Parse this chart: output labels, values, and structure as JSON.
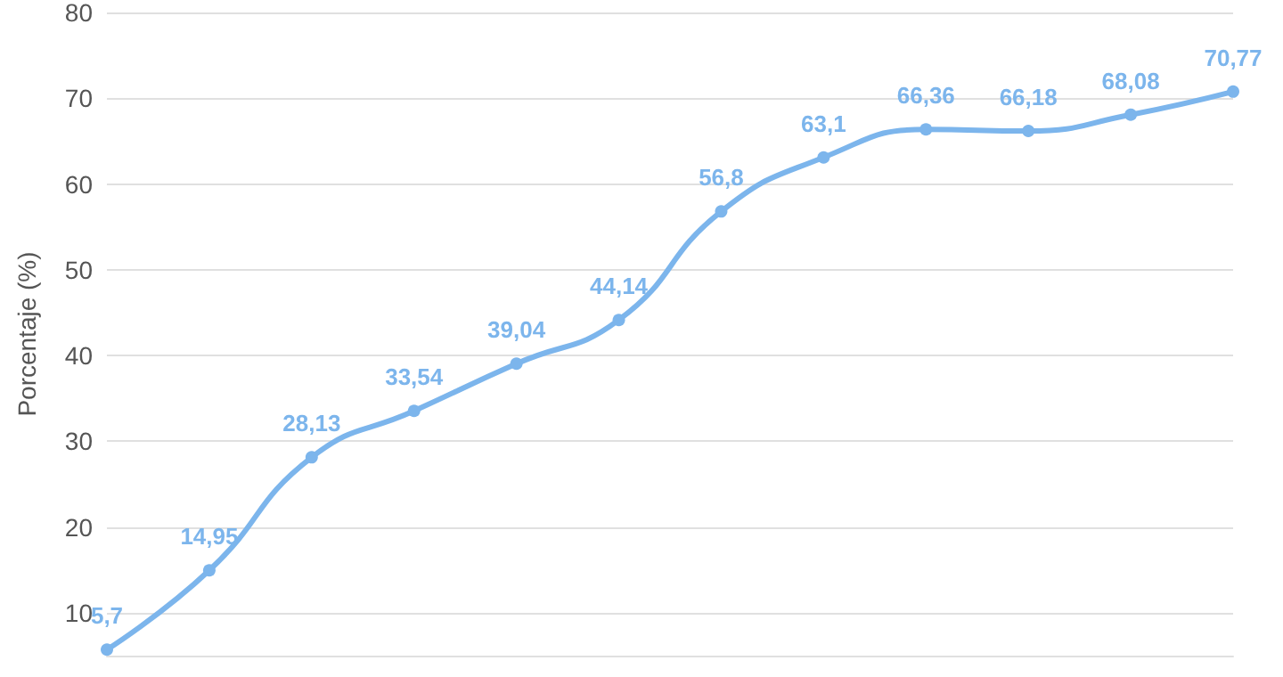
{
  "chart_data": {
    "type": "line",
    "ylabel": "Porcentaje (%)",
    "categories": [
      null,
      null,
      null,
      null,
      null,
      null,
      null,
      null,
      null,
      null,
      null,
      null
    ],
    "series": [
      {
        "color": "#7cb5ec",
        "values": [
          5.7,
          14.95,
          28.13,
          33.54,
          39.04,
          44.14,
          56.8,
          63.1,
          66.36,
          66.18,
          68.08,
          70.77
        ],
        "value_labels": [
          "5,7",
          "14,95",
          "28,13",
          "33,54",
          "39,04",
          "44,14",
          "56,8",
          "63,1",
          "66,36",
          "66,18",
          "68,08",
          "70,77"
        ]
      }
    ],
    "ylim": [
      5,
      80
    ],
    "yticks": [
      10,
      20,
      30,
      40,
      50,
      60,
      70,
      80
    ],
    "grid": "y",
    "marker": "circle",
    "line_style": "solid"
  }
}
